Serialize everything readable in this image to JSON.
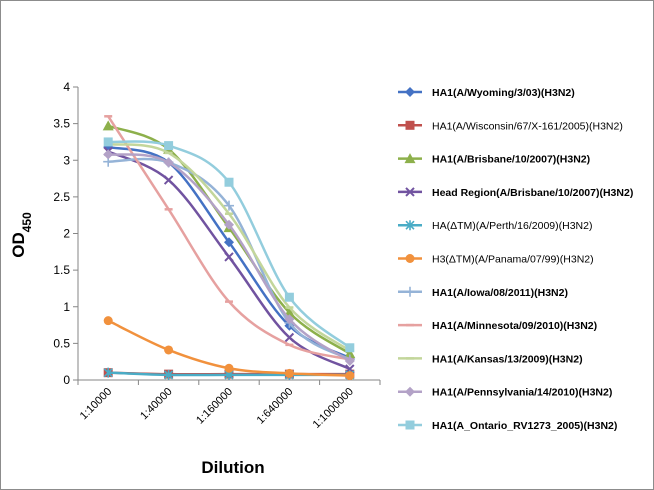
{
  "chart_data": {
    "type": "line",
    "title": "",
    "xlabel": "Dilution",
    "ylabel_main": "OD",
    "ylabel_sub": "450",
    "categories": [
      "1:10000",
      "1:40000",
      "1:160000",
      "1:640000",
      "1:1000000"
    ],
    "ylim": [
      0,
      4
    ],
    "yticks": [
      "0",
      "0.5",
      "1",
      "1.5",
      "2",
      "2.5",
      "3",
      "3.5",
      "4"
    ],
    "grid": false,
    "legend_position": "right",
    "series": [
      {
        "name": "HA1(A/Wyoming/3/03)(H3N2)",
        "bold": true,
        "color": "#4472c4",
        "marker": "diamond",
        "values": [
          3.18,
          2.97,
          1.88,
          0.74,
          0.3
        ]
      },
      {
        "name": "HA1(A/Wisconsin/67/X-161/2005)(H3N2)",
        "bold": false,
        "color": "#c0504d",
        "marker": "square",
        "values": [
          0.1,
          0.08,
          0.08,
          0.08,
          0.08
        ]
      },
      {
        "name": "HA1(A/Brisbane/10/2007)(H3N2)",
        "bold": true,
        "color": "#8db04b",
        "marker": "triangle",
        "values": [
          3.47,
          3.15,
          2.08,
          0.92,
          0.36
        ]
      },
      {
        "name": "Head Region(A/Brisbane/10/2007)(H3N2)",
        "bold": true,
        "color": "#7153a0",
        "marker": "x",
        "values": [
          3.12,
          2.73,
          1.68,
          0.58,
          0.15
        ]
      },
      {
        "name": "HA(ΔTM)(A/Perth/16/2009)(H3N2)",
        "bold": false,
        "color": "#4aacc6",
        "marker": "star",
        "values": [
          0.1,
          0.07,
          0.07,
          0.07,
          0.07
        ]
      },
      {
        "name": "H3(ΔTM)(A/Panama/07/99)(H3N2)",
        "bold": false,
        "color": "#f1913d",
        "marker": "circle",
        "values": [
          0.81,
          0.41,
          0.16,
          0.09,
          0.06
        ]
      },
      {
        "name": "HA1(A/Iowa/08/2011)(H3N2)",
        "bold": true,
        "color": "#95b3d7",
        "marker": "plus",
        "values": [
          2.98,
          2.97,
          2.38,
          0.78,
          0.28
        ]
      },
      {
        "name": "HA1(A/Minnesota/09/2010)(H3N2)",
        "bold": true,
        "color": "#e6a1a0",
        "marker": "dash",
        "values": [
          3.6,
          2.33,
          1.07,
          0.48,
          0.28
        ]
      },
      {
        "name": "HA1(A/Kansas/13/2009)(H3N2)",
        "bold": true,
        "color": "#c3d69b",
        "marker": "dash",
        "values": [
          3.22,
          3.1,
          2.27,
          0.99,
          0.4
        ]
      },
      {
        "name": "HA1(A/Pennsylvania/14/2010)(H3N2)",
        "bold": true,
        "color": "#b3a2c7",
        "marker": "diamond",
        "values": [
          3.08,
          2.97,
          2.12,
          0.83,
          0.26
        ]
      },
      {
        "name": "HA1(A_Ontario_RV1273_2005)(H3N2)",
        "bold": true,
        "color": "#93cddd",
        "marker": "square",
        "values": [
          3.25,
          3.2,
          2.7,
          1.13,
          0.44
        ]
      }
    ]
  }
}
